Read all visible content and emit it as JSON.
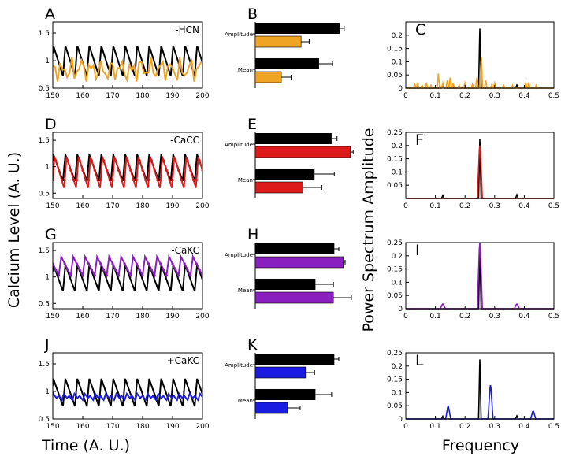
{
  "figure": {
    "y_label_left": "Calcium Level (A. U.)",
    "x_label_left": "Time (A. U.)",
    "y_label_right": "Power Spectrum Amplitude",
    "x_label_right": "Frequency"
  },
  "colors": {
    "control": "#000000",
    "hcn": "#f0a424",
    "cacc": "#dd1a1a",
    "cakc_minus": "#8a1fbf",
    "cakc_plus": "#1a1ae0"
  },
  "rows": [
    {
      "key": "hcn",
      "color": "#f0a424",
      "time": {
        "panel": "A",
        "annotation": "-HCN",
        "xlim": [
          150,
          200
        ],
        "ylim": [
          0.5,
          1.7
        ],
        "xticks": [
          150,
          160,
          170,
          180,
          190,
          200
        ],
        "yticks": [
          0.5,
          1,
          1.5
        ],
        "control": {
          "period": 4,
          "min": 0.72,
          "max": 1.27,
          "phase": 0
        },
        "condition": {
          "kind": "irregular",
          "mean": 0.83,
          "amp": 0.24,
          "min": 0.62,
          "max": 1.06
        }
      },
      "bars": {
        "panel": "B",
        "groups": [
          "Amplitude",
          "Mean"
        ],
        "amplitude": {
          "control": 0.94,
          "condition": 0.51,
          "err_control": 0.05,
          "err_condition": 0.09
        },
        "mean": {
          "control": 0.71,
          "condition": 0.29,
          "err_control": 0.15,
          "err_condition": 0.11
        }
      },
      "spectrum": {
        "panel": "C",
        "xlim": [
          0,
          0.5
        ],
        "ylim": [
          0,
          0.25
        ],
        "xticks": [
          0,
          0.1,
          0.2,
          0.3,
          0.4,
          0.5
        ],
        "yticks": [
          0,
          0.05,
          0.1,
          0.15,
          0.2
        ],
        "control_peaks": [
          [
            0.125,
            0.01
          ],
          [
            0.25,
            0.225
          ],
          [
            0.375,
            0.012
          ]
        ],
        "condition_peaks": [
          [
            0.03,
            0.015
          ],
          [
            0.04,
            0.022
          ],
          [
            0.055,
            0.012
          ],
          [
            0.07,
            0.018
          ],
          [
            0.085,
            0.01
          ],
          [
            0.11,
            0.055
          ],
          [
            0.125,
            0.02
          ],
          [
            0.14,
            0.03
          ],
          [
            0.15,
            0.04
          ],
          [
            0.16,
            0.018
          ],
          [
            0.18,
            0.012
          ],
          [
            0.2,
            0.02
          ],
          [
            0.225,
            0.015
          ],
          [
            0.24,
            0.04
          ],
          [
            0.255,
            0.118
          ],
          [
            0.27,
            0.03
          ],
          [
            0.29,
            0.012
          ],
          [
            0.3,
            0.02
          ],
          [
            0.33,
            0.012
          ],
          [
            0.36,
            0.01
          ],
          [
            0.405,
            0.02
          ],
          [
            0.415,
            0.022
          ],
          [
            0.44,
            0.01
          ]
        ]
      }
    },
    {
      "key": "cacc",
      "color": "#dd1a1a",
      "time": {
        "panel": "D",
        "annotation": "-CaCC",
        "xlim": [
          150,
          200
        ],
        "ylim": [
          0.4,
          1.65
        ],
        "xticks": [
          150,
          160,
          170,
          180,
          190,
          200
        ],
        "yticks": [
          0.5,
          1,
          1.5
        ],
        "control": {
          "period": 4,
          "min": 0.73,
          "max": 1.23,
          "phase": 0
        },
        "condition": {
          "kind": "periodic",
          "period": 4,
          "min": 0.6,
          "max": 1.19,
          "phase": 0.2
        }
      },
      "bars": {
        "panel": "E",
        "groups": [
          "Amplitude",
          "Mean"
        ],
        "amplitude": {
          "control": 0.85,
          "condition": 1.06,
          "err_control": 0.06,
          "err_condition": 0.03
        },
        "mean": {
          "control": 0.66,
          "condition": 0.53,
          "err_control": 0.22,
          "err_condition": 0.21
        }
      },
      "spectrum": {
        "panel": "F",
        "xlim": [
          0,
          0.5
        ],
        "ylim": [
          0,
          0.25
        ],
        "xticks": [
          0,
          0.1,
          0.2,
          0.3,
          0.4,
          0.5
        ],
        "yticks": [
          0.05,
          0.1,
          0.15,
          0.2,
          0.25
        ],
        "control_peaks": [
          [
            0.125,
            0.012
          ],
          [
            0.25,
            0.225
          ],
          [
            0.375,
            0.014
          ]
        ],
        "condition_peaks": [
          [
            0.25,
            0.2
          ]
        ]
      }
    },
    {
      "key": "cakc_minus",
      "color": "#8a1fbf",
      "time": {
        "panel": "G",
        "annotation": "-CaKC",
        "xlim": [
          150,
          200
        ],
        "ylim": [
          0.4,
          1.65
        ],
        "xticks": [
          150,
          160,
          170,
          180,
          190,
          200
        ],
        "yticks": [
          0.5,
          1,
          1.5
        ],
        "control": {
          "period": 4,
          "min": 0.73,
          "max": 1.23,
          "phase": 0
        },
        "condition": {
          "kind": "periodic",
          "period": 4,
          "min": 1.03,
          "max": 1.38,
          "phase": 2
        }
      },
      "bars": {
        "panel": "H",
        "groups": [
          "Amplitude",
          "Mean"
        ],
        "amplitude": {
          "control": 0.88,
          "condition": 0.98,
          "err_control": 0.05,
          "err_condition": 0.02
        },
        "mean": {
          "control": 0.67,
          "condition": 0.87,
          "err_control": 0.2,
          "err_condition": 0.2
        }
      },
      "spectrum": {
        "panel": "I",
        "xlim": [
          0,
          0.5
        ],
        "ylim": [
          0,
          0.25
        ],
        "xticks": [
          0,
          0.1,
          0.2,
          0.3,
          0.4,
          0.5
        ],
        "yticks": [
          0,
          0.05,
          0.1,
          0.15,
          0.2,
          0.25
        ],
        "control_peaks": [
          [
            0.25,
            0.23
          ]
        ],
        "condition_peaks": [
          [
            0.125,
            0.018
          ],
          [
            0.25,
            0.25
          ],
          [
            0.375,
            0.018
          ]
        ]
      }
    },
    {
      "key": "cakc_plus",
      "color": "#1a1ae0",
      "time": {
        "panel": "J",
        "annotation": "+CaKC",
        "xlim": [
          150,
          200
        ],
        "ylim": [
          0.5,
          1.7
        ],
        "xticks": [
          150,
          160,
          170,
          180,
          190,
          200
        ],
        "yticks": [
          0.5,
          1,
          1.5
        ],
        "control": {
          "period": 4,
          "min": 0.73,
          "max": 1.23,
          "phase": 0
        },
        "condition": {
          "kind": "double",
          "period": 3.5,
          "min": 0.8,
          "max": 1.0,
          "phase": 0.5
        }
      },
      "bars": {
        "panel": "K",
        "groups": [
          "Amplitude",
          "Mean"
        ],
        "amplitude": {
          "control": 0.88,
          "condition": 0.56,
          "err_control": 0.05,
          "err_condition": 0.1
        },
        "mean": {
          "control": 0.67,
          "condition": 0.36,
          "err_control": 0.18,
          "err_condition": 0.14
        }
      },
      "spectrum": {
        "panel": "L",
        "xlim": [
          0,
          0.5
        ],
        "ylim": [
          0,
          0.25
        ],
        "xticks": [
          0,
          0.1,
          0.2,
          0.3,
          0.4,
          0.5
        ],
        "yticks": [
          0,
          0.05,
          0.1,
          0.15,
          0.2,
          0.25
        ],
        "control_peaks": [
          [
            0.125,
            0.01
          ],
          [
            0.25,
            0.225
          ],
          [
            0.375,
            0.012
          ]
        ],
        "condition_peaks": [
          [
            0.143,
            0.048
          ],
          [
            0.286,
            0.128
          ],
          [
            0.43,
            0.03
          ]
        ]
      }
    }
  ],
  "chart_data": [
    {
      "type": "line",
      "panel": "A",
      "annotation": "-HCN",
      "x_range": [
        150,
        200
      ],
      "y_range": [
        0.5,
        1.7
      ],
      "series": [
        {
          "color": "#000000",
          "description": "control oscillation, period ~4, range 0.72-1.27"
        },
        {
          "color": "#f0a424",
          "description": "irregular oscillation, range ~0.62-1.06"
        }
      ]
    },
    {
      "type": "bar",
      "panel": "B",
      "categories": [
        "Amplitude",
        "Mean"
      ],
      "series": [
        {
          "color": "#000000",
          "values": [
            0.94,
            0.71
          ]
        },
        {
          "color": "#f0a424",
          "values": [
            0.51,
            0.29
          ]
        }
      ]
    },
    {
      "type": "bar",
      "panel": "C",
      "x_range": [
        0,
        0.5
      ],
      "y_range": [
        0,
        0.25
      ],
      "series": [
        {
          "color": "#000000",
          "peaks": [
            [
              0.125,
              0.01
            ],
            [
              0.25,
              0.225
            ],
            [
              0.375,
              0.012
            ]
          ]
        },
        {
          "color": "#f0a424",
          "peaks": [
            [
              0.11,
              0.055
            ],
            [
              0.15,
              0.04
            ],
            [
              0.255,
              0.118
            ],
            [
              0.41,
              0.022
            ]
          ]
        }
      ]
    },
    {
      "type": "line",
      "panel": "D",
      "annotation": "-CaCC",
      "x_range": [
        150,
        200
      ],
      "y_range": [
        0.4,
        1.65
      ],
      "series": [
        {
          "color": "#000000",
          "description": "control, period ~4"
        },
        {
          "color": "#dd1a1a",
          "description": "period ~4, range 0.6-1.19"
        }
      ]
    },
    {
      "type": "bar",
      "panel": "E",
      "categories": [
        "Amplitude",
        "Mean"
      ],
      "series": [
        {
          "color": "#000000",
          "values": [
            0.85,
            0.66
          ]
        },
        {
          "color": "#dd1a1a",
          "values": [
            1.06,
            0.53
          ]
        }
      ]
    },
    {
      "type": "bar",
      "panel": "F",
      "x_range": [
        0,
        0.5
      ],
      "y_range": [
        0,
        0.25
      ],
      "series": [
        {
          "color": "#000000",
          "peaks": [
            [
              0.125,
              0.012
            ],
            [
              0.25,
              0.225
            ],
            [
              0.375,
              0.014
            ]
          ]
        },
        {
          "color": "#dd1a1a",
          "peaks": [
            [
              0.25,
              0.2
            ]
          ]
        }
      ]
    },
    {
      "type": "line",
      "panel": "G",
      "annotation": "-CaKC",
      "x_range": [
        150,
        200
      ],
      "y_range": [
        0.4,
        1.65
      ],
      "series": [
        {
          "color": "#000000",
          "description": "control, period ~4"
        },
        {
          "color": "#8a1fbf",
          "description": "period ~4, range 1.03-1.38"
        }
      ]
    },
    {
      "type": "bar",
      "panel": "H",
      "categories": [
        "Amplitude",
        "Mean"
      ],
      "series": [
        {
          "color": "#000000",
          "values": [
            0.88,
            0.67
          ]
        },
        {
          "color": "#8a1fbf",
          "values": [
            0.98,
            0.87
          ]
        }
      ]
    },
    {
      "type": "bar",
      "panel": "I",
      "x_range": [
        0,
        0.5
      ],
      "y_range": [
        0,
        0.25
      ],
      "series": [
        {
          "color": "#000000",
          "peaks": [
            [
              0.25,
              0.23
            ]
          ]
        },
        {
          "color": "#8a1fbf",
          "peaks": [
            [
              0.125,
              0.018
            ],
            [
              0.25,
              0.25
            ],
            [
              0.375,
              0.018
            ]
          ]
        }
      ]
    },
    {
      "type": "line",
      "panel": "J",
      "annotation": "+CaKC",
      "x_range": [
        150,
        200
      ],
      "y_range": [
        0.5,
        1.7
      ],
      "series": [
        {
          "color": "#000000",
          "description": "control, period ~4"
        },
        {
          "color": "#1a1ae0",
          "description": "period ~3.5, range 0.8-1.0"
        }
      ]
    },
    {
      "type": "bar",
      "panel": "K",
      "categories": [
        "Amplitude",
        "Mean"
      ],
      "series": [
        {
          "color": "#000000",
          "values": [
            0.88,
            0.67
          ]
        },
        {
          "color": "#1a1ae0",
          "values": [
            0.56,
            0.36
          ]
        }
      ]
    },
    {
      "type": "bar",
      "panel": "L",
      "x_range": [
        0,
        0.5
      ],
      "y_range": [
        0,
        0.25
      ],
      "series": [
        {
          "color": "#000000",
          "peaks": [
            [
              0.125,
              0.01
            ],
            [
              0.25,
              0.225
            ],
            [
              0.375,
              0.012
            ]
          ]
        },
        {
          "color": "#1a1ae0",
          "peaks": [
            [
              0.143,
              0.048
            ],
            [
              0.286,
              0.128
            ],
            [
              0.43,
              0.03
            ]
          ]
        }
      ]
    }
  ]
}
